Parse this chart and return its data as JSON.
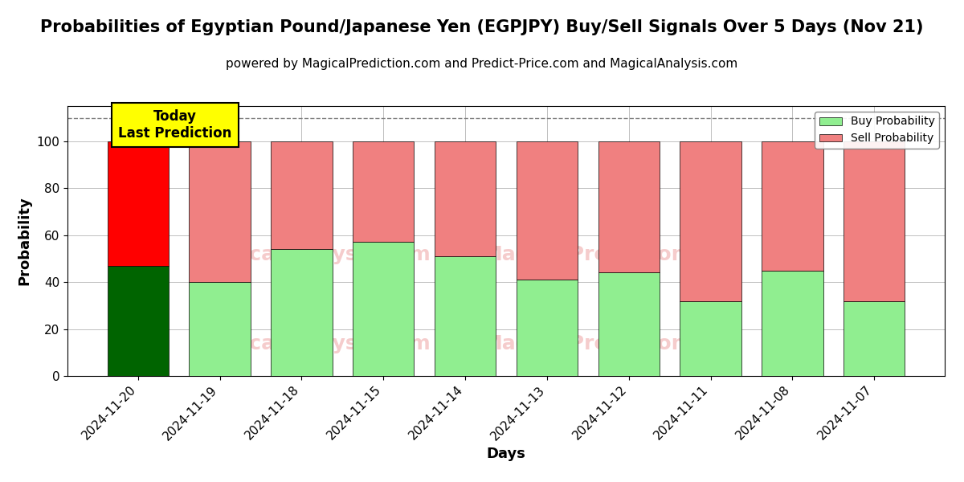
{
  "title": "Probabilities of Egyptian Pound/Japanese Yen (EGPJPY) Buy/Sell Signals Over 5 Days (Nov 21)",
  "subtitle": "powered by MagicalPrediction.com and Predict-Price.com and MagicalAnalysis.com",
  "xlabel": "Days",
  "ylabel": "Probability",
  "categories": [
    "2024-11-20",
    "2024-11-19",
    "2024-11-18",
    "2024-11-15",
    "2024-11-14",
    "2024-11-13",
    "2024-11-12",
    "2024-11-11",
    "2024-11-08",
    "2024-11-07"
  ],
  "buy_values": [
    47,
    40,
    54,
    57,
    51,
    41,
    44,
    32,
    45,
    32
  ],
  "sell_values": [
    53,
    60,
    46,
    43,
    49,
    59,
    56,
    68,
    55,
    68
  ],
  "today_buy_color": "#006400",
  "today_sell_color": "#ff0000",
  "buy_color": "#90EE90",
  "sell_color": "#F08080",
  "today_label_bg": "#ffff00",
  "today_label_text": "Today\nLast Prediction",
  "ylim": [
    0,
    115
  ],
  "dashed_line_y": 110,
  "legend_buy": "Buy Probability",
  "legend_sell": "Sell Probability",
  "title_fontsize": 15,
  "subtitle_fontsize": 11,
  "axis_label_fontsize": 13,
  "tick_fontsize": 11
}
